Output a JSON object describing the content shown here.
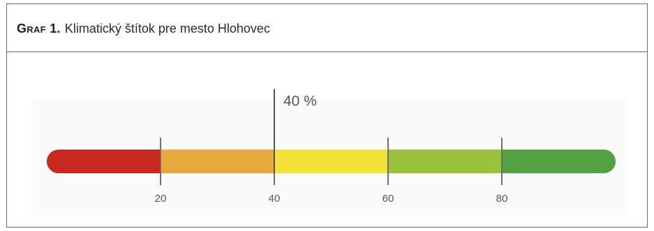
{
  "header": {
    "figure_label": "Graf 1.",
    "title": "Klimatický štítok pre mesto Hlohovec"
  },
  "chart_data": {
    "type": "bar",
    "orientation": "horizontal-gauge",
    "title": "Klimatický štítok pre mesto Hlohovec",
    "xlim": [
      0,
      100
    ],
    "ticks": [
      20,
      40,
      60,
      80
    ],
    "tick_labels": [
      "20",
      "40",
      "60",
      "80"
    ],
    "segments": [
      {
        "from": 0,
        "to": 20,
        "color": "#c8281e"
      },
      {
        "from": 20,
        "to": 40,
        "color": "#e8a83a"
      },
      {
        "from": 40,
        "to": 60,
        "color": "#f2e23a"
      },
      {
        "from": 60,
        "to": 80,
        "color": "#9ac23c"
      },
      {
        "from": 80,
        "to": 100,
        "color": "#55a040"
      }
    ],
    "marker": {
      "value": 40,
      "label": "40 %"
    },
    "grid": false
  }
}
